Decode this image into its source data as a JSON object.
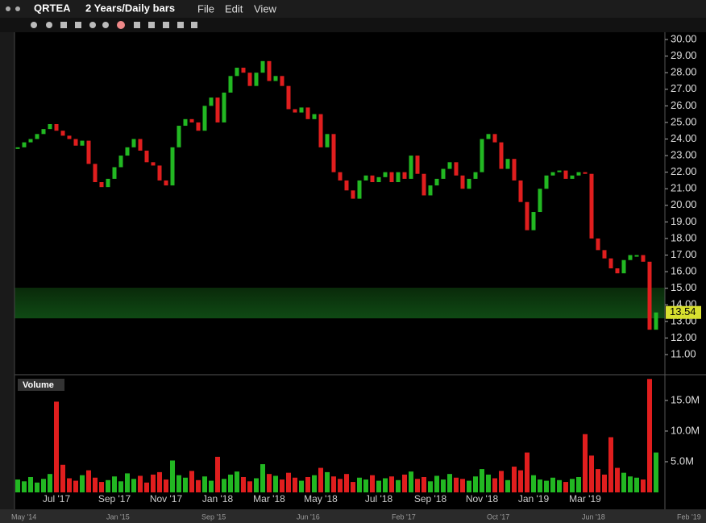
{
  "header": {
    "symbol": "QRTEA",
    "period": "2 Years/Daily bars",
    "menu": [
      "File",
      "Edit",
      "View"
    ]
  },
  "chart_data": [
    {
      "type": "candlestick",
      "categories": [
        null,
        null,
        null,
        null,
        null,
        null,
        "Jul '17",
        null,
        null,
        null,
        null,
        null,
        null,
        null,
        null,
        "Sep '17",
        null,
        null,
        null,
        null,
        null,
        null,
        null,
        "Nov '17",
        null,
        null,
        null,
        null,
        null,
        null,
        null,
        "Jan '18",
        null,
        null,
        null,
        null,
        null,
        null,
        null,
        "Mar '18",
        null,
        null,
        null,
        null,
        null,
        null,
        null,
        "May '18",
        null,
        null,
        null,
        null,
        null,
        null,
        null,
        null,
        "Jul '18",
        null,
        null,
        null,
        null,
        null,
        null,
        null,
        "Sep '18",
        null,
        null,
        null,
        null,
        null,
        null,
        null,
        "Nov '18",
        null,
        null,
        null,
        null,
        null,
        null,
        null,
        "Jan '19",
        null,
        null,
        null,
        null,
        null,
        null,
        null,
        "Mar '19",
        null,
        null,
        null,
        null,
        null,
        null,
        null,
        null,
        null,
        null,
        null
      ],
      "values": [
        23.5,
        23.8,
        24.0,
        24.3,
        24.6,
        24.9,
        24.5,
        24.2,
        24.0,
        23.6,
        23.9,
        22.5,
        21.4,
        21.1,
        21.6,
        22.3,
        23.0,
        23.5,
        24.0,
        23.3,
        22.6,
        22.4,
        21.5,
        21.2,
        23.5,
        24.8,
        25.2,
        25.0,
        24.5,
        26.0,
        26.5,
        25.0,
        26.8,
        27.8,
        28.3,
        28.0,
        27.2,
        28.0,
        28.7,
        27.5,
        27.8,
        27.2,
        25.8,
        25.6,
        25.9,
        25.2,
        25.5,
        23.5,
        24.3,
        22.0,
        21.5,
        20.9,
        20.4,
        21.5,
        21.8,
        21.4,
        21.7,
        22.0,
        21.4,
        22.0,
        21.6,
        23.0,
        21.9,
        20.6,
        21.2,
        21.6,
        22.2,
        22.6,
        21.8,
        21.0,
        21.6,
        22.0,
        24.0,
        24.3,
        23.8,
        22.2,
        22.8,
        21.5,
        20.2,
        18.5,
        19.6,
        21.0,
        21.8,
        22.0,
        22.1,
        21.6,
        21.8,
        22.0,
        21.9,
        18.0,
        17.3,
        16.8,
        16.2,
        15.9,
        16.7,
        17.0,
        17.0,
        16.6,
        12.5,
        13.54
      ],
      "ylim": [
        9.93,
        30.44
      ],
      "yticks": [
        {
          "value": 30,
          "label": "30.00"
        },
        {
          "value": 29,
          "label": "29.00"
        },
        {
          "value": 28,
          "label": "28.00"
        },
        {
          "value": 27,
          "label": "27.00"
        },
        {
          "value": 26,
          "label": "26.00"
        },
        {
          "value": 25,
          "label": "25.00"
        },
        {
          "value": 24,
          "label": "24.00"
        },
        {
          "value": 23,
          "label": "23.00"
        },
        {
          "value": 22,
          "label": "22.00"
        },
        {
          "value": 21,
          "label": "21.00"
        },
        {
          "value": 20,
          "label": "20.00"
        },
        {
          "value": 19,
          "label": "19.00"
        },
        {
          "value": 18,
          "label": "18.00"
        },
        {
          "value": 17,
          "label": "17.00"
        },
        {
          "value": 16,
          "label": "16.00"
        },
        {
          "value": 15,
          "label": "15.00"
        },
        {
          "value": 14,
          "label": "14.00"
        },
        {
          "value": 13,
          "label": "13.00"
        },
        {
          "value": 12,
          "label": "12.00"
        },
        {
          "value": 11,
          "label": "11.00"
        }
      ],
      "up_color": "#22b822",
      "down_color": "#e01e1e"
    },
    {
      "type": "bar",
      "title": "Volume",
      "values": [
        2.1,
        1.8,
        2.5,
        1.6,
        2.2,
        3.0,
        14.8,
        4.5,
        2.3,
        1.9,
        2.8,
        3.6,
        2.4,
        1.7,
        2.0,
        2.6,
        1.8,
        3.1,
        2.2,
        2.7,
        1.6,
        2.9,
        3.3,
        2.1,
        5.2,
        2.8,
        2.4,
        3.5,
        2.0,
        2.6,
        1.9,
        5.8,
        2.2,
        2.9,
        3.4,
        2.5,
        1.8,
        2.3,
        4.6,
        3.0,
        2.7,
        2.1,
        3.2,
        2.4,
        1.9,
        2.5,
        2.8,
        4.0,
        3.3,
        2.6,
        2.2,
        3.0,
        1.7,
        2.4,
        2.1,
        2.8,
        1.9,
        2.3,
        2.6,
        2.0,
        2.9,
        3.4,
        2.2,
        2.5,
        1.8,
        2.7,
        2.1,
        3.0,
        2.4,
        2.2,
        1.9,
        2.6,
        3.8,
        2.9,
        2.3,
        3.5,
        2.0,
        4.2,
        3.6,
        6.5,
        2.8,
        2.1,
        1.9,
        2.4,
        2.0,
        1.7,
        2.2,
        2.5,
        9.5,
        6.0,
        3.8,
        2.9,
        9.0,
        4.0,
        3.2,
        2.6,
        2.4,
        2.1,
        18.5,
        6.5
      ],
      "ylim": [
        0,
        18.8
      ],
      "yticks": [
        {
          "value": 5,
          "label": "5.0M"
        },
        {
          "value": 10,
          "label": "10.0M"
        },
        {
          "value": 15,
          "label": "15.0M"
        }
      ]
    }
  ],
  "navigator": {
    "labels": [
      "May '14",
      "Jan '15",
      "Sep '15",
      "Jun '16",
      "Feb '17",
      "Oct '17",
      "Jun '18",
      "Feb '19"
    ]
  }
}
